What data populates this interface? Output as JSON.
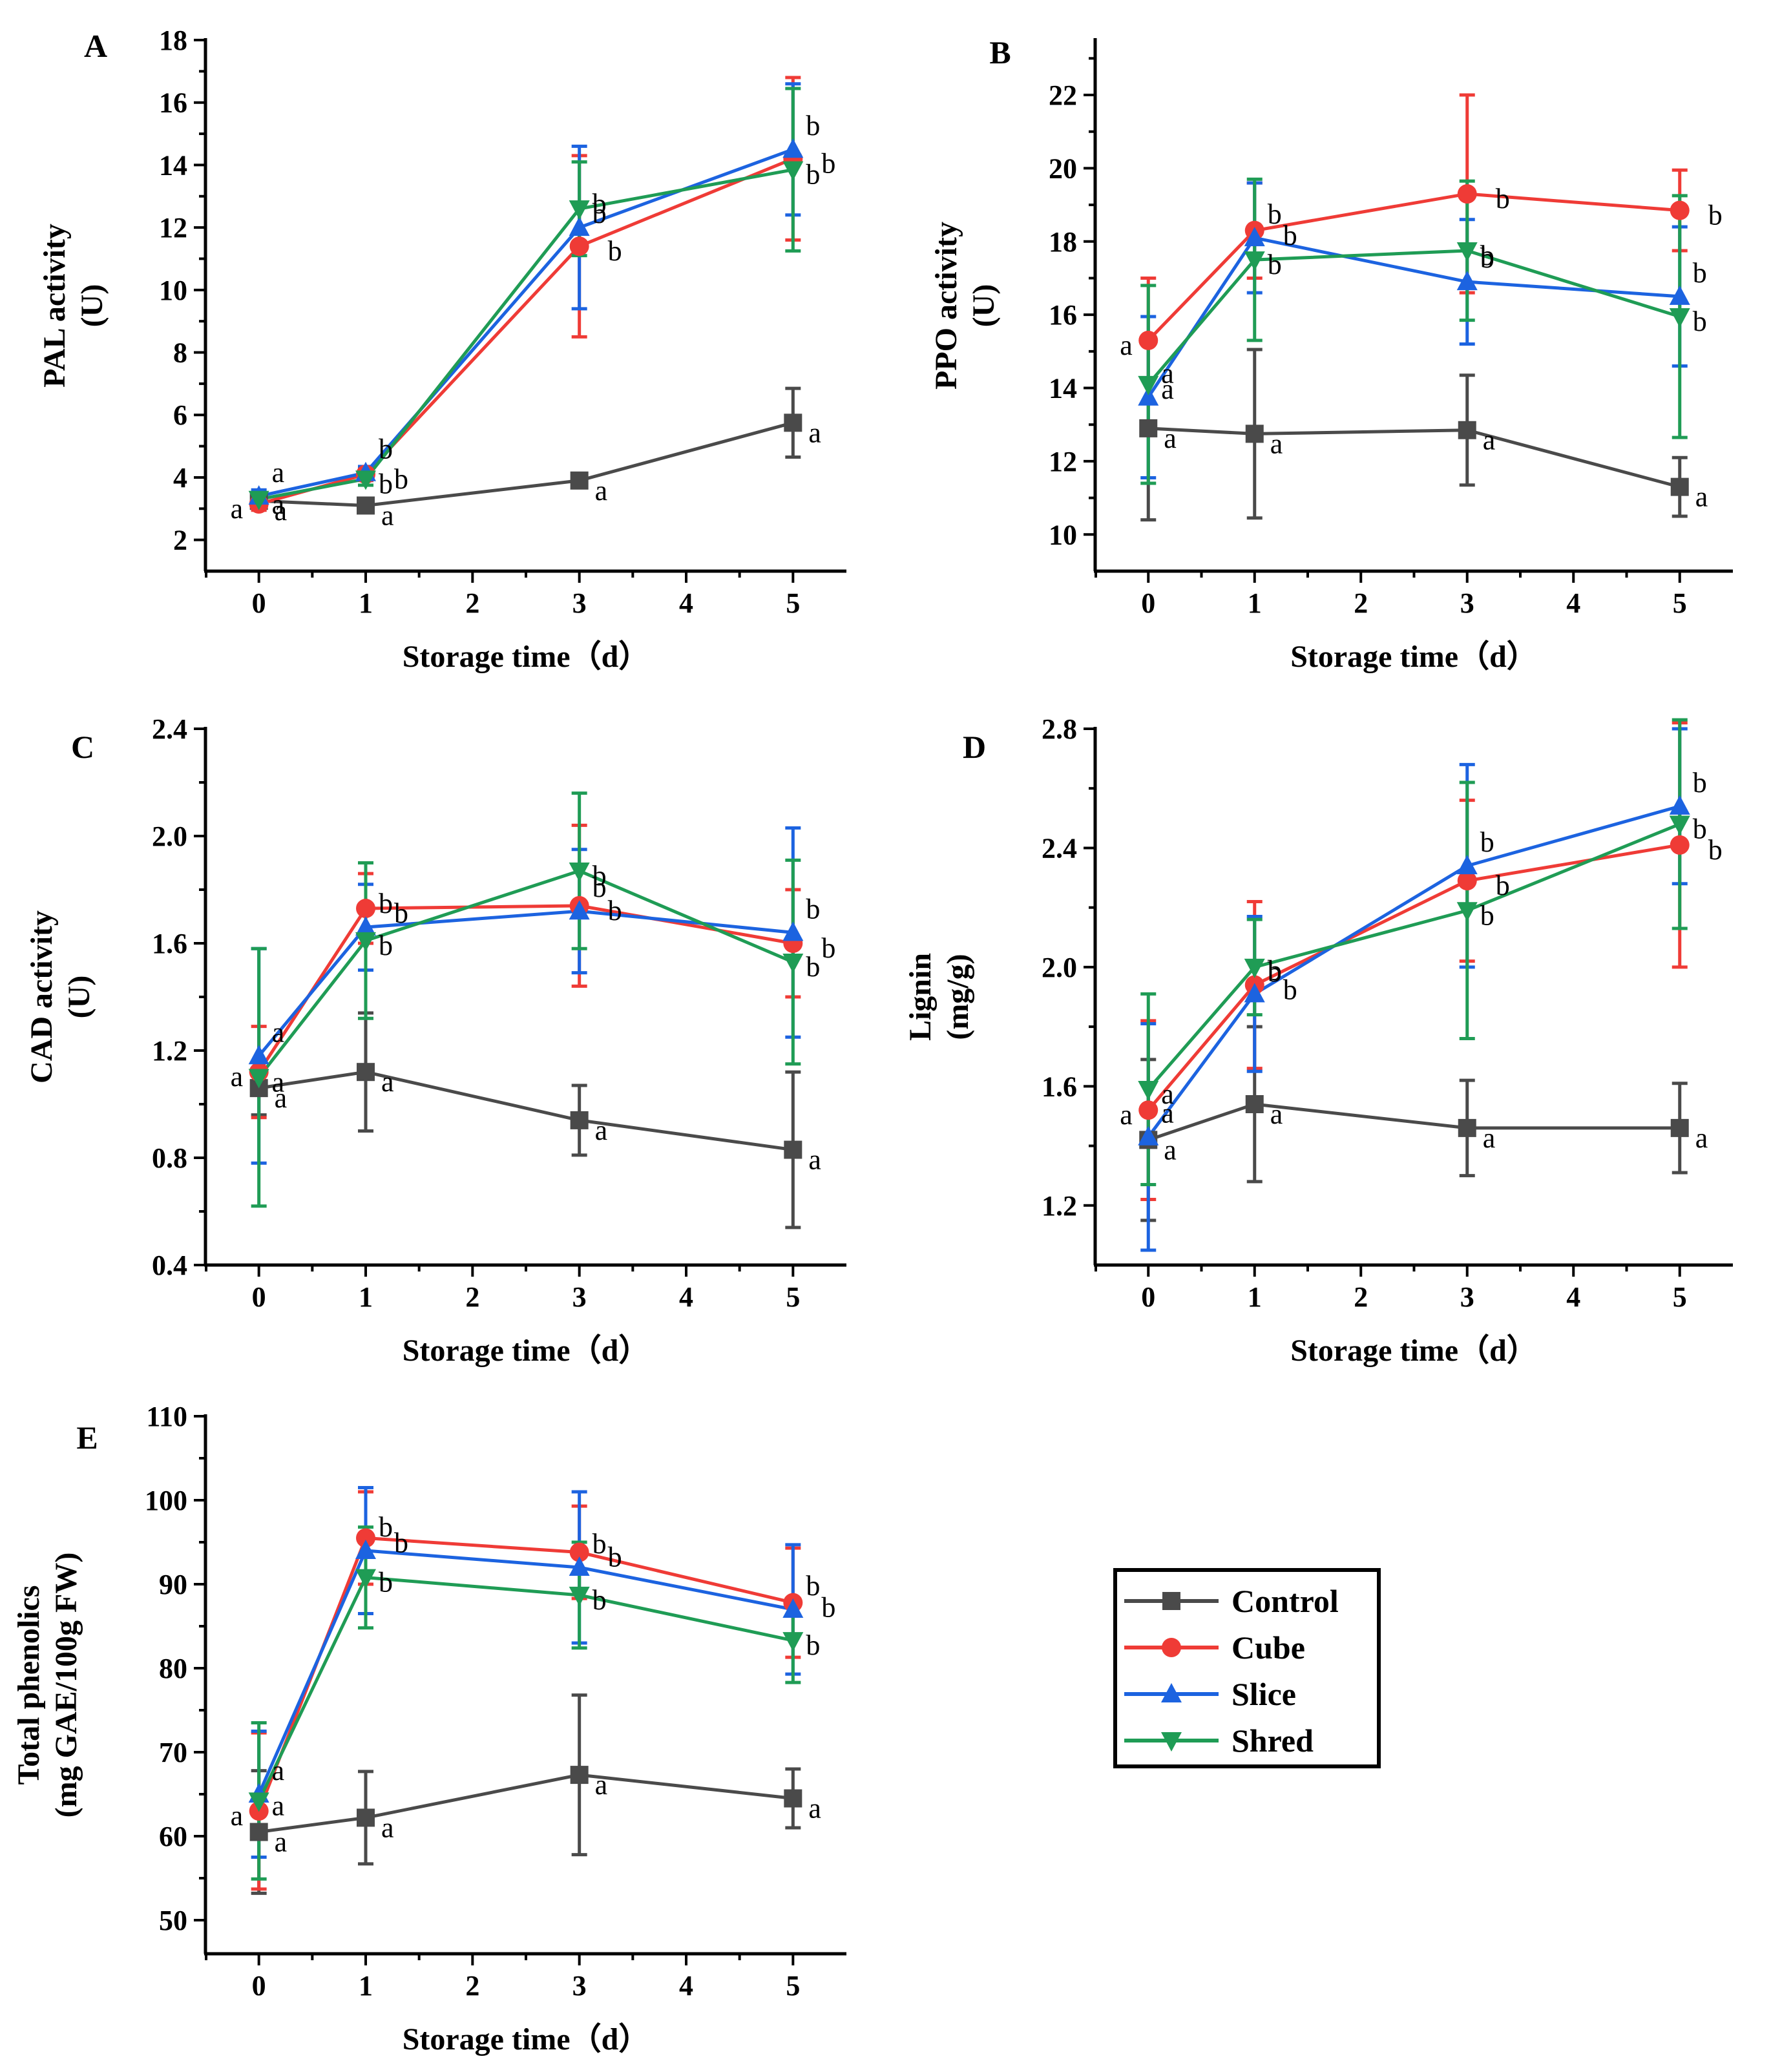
{
  "colors": {
    "Control": "#4a4a4a",
    "Cube": "#ef3b36",
    "Slice": "#1c63e0",
    "Shred": "#1f9c55",
    "axis": "#000000"
  },
  "legend": {
    "entries": [
      "Control",
      "Cube",
      "Slice",
      "Shred"
    ],
    "markers": [
      "square",
      "circle",
      "triangle-up",
      "triangle-down"
    ],
    "placement": "lower-right"
  },
  "chart_data": [
    {
      "type": "line",
      "panel": "A",
      "xlabel": "Storage time（d）",
      "ylabel": [
        "PAL activity",
        "(U)"
      ],
      "xlim": [
        -0.5,
        5.5
      ],
      "ylim": [
        1,
        18
      ],
      "xticks": [
        0,
        1,
        2,
        3,
        4,
        5
      ],
      "yticks": [
        2,
        4,
        6,
        8,
        10,
        12,
        14,
        16,
        18
      ],
      "tick_decimals": 0,
      "x": [
        0,
        1,
        3,
        5
      ],
      "series": [
        {
          "name": "Control",
          "values": [
            3.25,
            3.1,
            3.9,
            5.75
          ],
          "errors": [
            0.2,
            0.2,
            0.2,
            1.1
          ],
          "letters": [
            "a",
            "a",
            "a",
            "a"
          ]
        },
        {
          "name": "Cube",
          "values": [
            3.15,
            4.1,
            11.4,
            14.2
          ],
          "errors": [
            0.2,
            0.2,
            2.9,
            2.6
          ],
          "letters": [
            "a",
            "b",
            "b",
            "b"
          ]
        },
        {
          "name": "Slice",
          "values": [
            3.4,
            4.15,
            12.0,
            14.5
          ],
          "errors": [
            0.2,
            0.2,
            2.6,
            2.1
          ],
          "letters": [
            "a",
            "b",
            "b",
            "b"
          ]
        },
        {
          "name": "Shred",
          "values": [
            3.3,
            3.95,
            12.6,
            13.85
          ],
          "errors": [
            0.2,
            0.2,
            1.5,
            2.6
          ],
          "letters": [
            "a",
            "b",
            "b",
            "b"
          ]
        }
      ]
    },
    {
      "type": "line",
      "panel": "B",
      "xlabel": "Storage time（d）",
      "ylabel": [
        "PPO activity",
        "(U)"
      ],
      "xlim": [
        -0.5,
        5.5
      ],
      "ylim": [
        9,
        23.5
      ],
      "xticks": [
        0,
        1,
        2,
        3,
        4,
        5
      ],
      "yticks": [
        10,
        12,
        14,
        16,
        18,
        20,
        22
      ],
      "tick_decimals": 0,
      "x": [
        0,
        1,
        3,
        5
      ],
      "series": [
        {
          "name": "Control",
          "values": [
            12.9,
            12.75,
            12.85,
            11.3
          ],
          "errors": [
            2.5,
            2.3,
            1.5,
            0.8
          ],
          "letters": [
            "a",
            "a",
            "a",
            "a"
          ]
        },
        {
          "name": "Cube",
          "values": [
            15.3,
            18.3,
            19.3,
            18.85
          ],
          "errors": [
            1.7,
            1.3,
            2.7,
            1.1
          ],
          "letters": [
            "a",
            "b",
            "b",
            "b"
          ]
        },
        {
          "name": "Slice",
          "values": [
            13.75,
            18.1,
            16.9,
            16.5
          ],
          "errors": [
            2.2,
            1.5,
            1.7,
            1.9
          ],
          "letters": [
            "a",
            "b",
            "b",
            "b"
          ]
        },
        {
          "name": "Shred",
          "values": [
            14.1,
            17.5,
            17.75,
            15.95
          ],
          "errors": [
            2.7,
            2.2,
            1.9,
            3.3
          ],
          "letters": [
            "a",
            "b",
            "b",
            "b"
          ]
        }
      ]
    },
    {
      "type": "line",
      "panel": "C",
      "xlabel": "Storage time（d）",
      "ylabel": [
        "CAD activity",
        "(U)"
      ],
      "xlim": [
        -0.5,
        5.5
      ],
      "ylim": [
        0.4,
        2.4
      ],
      "xticks": [
        0,
        1,
        2,
        3,
        4,
        5
      ],
      "yticks": [
        0.4,
        0.8,
        1.2,
        1.6,
        2.0,
        2.4
      ],
      "tick_decimals": 1,
      "x": [
        0,
        1,
        3,
        5
      ],
      "series": [
        {
          "name": "Control",
          "values": [
            1.06,
            1.12,
            0.94,
            0.83
          ],
          "errors": [
            0.1,
            0.22,
            0.13,
            0.29
          ],
          "letters": [
            "a",
            "a",
            "a",
            "a"
          ]
        },
        {
          "name": "Cube",
          "values": [
            1.12,
            1.73,
            1.74,
            1.6
          ],
          "errors": [
            0.17,
            0.13,
            0.3,
            0.2
          ],
          "letters": [
            "a",
            "b",
            "b",
            "b"
          ]
        },
        {
          "name": "Slice",
          "values": [
            1.18,
            1.66,
            1.72,
            1.64
          ],
          "errors": [
            0.4,
            0.16,
            0.23,
            0.39
          ],
          "letters": [
            "a",
            "b",
            "b",
            "b"
          ]
        },
        {
          "name": "Shred",
          "values": [
            1.1,
            1.61,
            1.87,
            1.53
          ],
          "errors": [
            0.48,
            0.29,
            0.29,
            0.38
          ],
          "letters": [
            "a",
            "b",
            "b",
            "b"
          ]
        }
      ]
    },
    {
      "type": "line",
      "panel": "D",
      "xlabel": "Storage time（d）",
      "ylabel": [
        "Lignin",
        "(mg/g)"
      ],
      "xlim": [
        -0.5,
        5.5
      ],
      "ylim": [
        1.0,
        2.8
      ],
      "xticks": [
        0,
        1,
        2,
        3,
        4,
        5
      ],
      "yticks": [
        1.2,
        1.6,
        2.0,
        2.4,
        2.8
      ],
      "tick_decimals": 1,
      "x": [
        0,
        1,
        3,
        5
      ],
      "series": [
        {
          "name": "Control",
          "values": [
            1.42,
            1.54,
            1.46,
            1.46
          ],
          "errors": [
            0.27,
            0.26,
            0.16,
            0.15
          ],
          "letters": [
            "a",
            "a",
            "a",
            "a"
          ]
        },
        {
          "name": "Cube",
          "values": [
            1.52,
            1.94,
            2.29,
            2.41
          ],
          "errors": [
            0.3,
            0.28,
            0.27,
            0.41
          ],
          "letters": [
            "a",
            "b",
            "b",
            "b"
          ]
        },
        {
          "name": "Slice",
          "values": [
            1.43,
            1.91,
            2.34,
            2.54
          ],
          "errors": [
            0.38,
            0.26,
            0.34,
            0.26
          ],
          "letters": [
            "a",
            "b",
            "b",
            "b"
          ]
        },
        {
          "name": "Shred",
          "values": [
            1.59,
            2.0,
            2.19,
            2.48
          ],
          "errors": [
            0.32,
            0.16,
            0.43,
            0.35
          ],
          "letters": [
            "a",
            "b",
            "b",
            "b"
          ]
        }
      ]
    },
    {
      "type": "line",
      "panel": "E",
      "xlabel": "Storage time（d）",
      "ylabel": [
        "Total phenolics",
        "(mg GAE/100g FW)"
      ],
      "xlim": [
        -0.5,
        5.5
      ],
      "ylim": [
        46,
        110
      ],
      "xticks": [
        0,
        1,
        2,
        3,
        4,
        5
      ],
      "yticks": [
        50,
        60,
        70,
        80,
        90,
        100,
        110
      ],
      "tick_decimals": 0,
      "x": [
        0,
        1,
        3,
        5
      ],
      "series": [
        {
          "name": "Control",
          "values": [
            60.5,
            62.2,
            67.3,
            64.5
          ],
          "errors": [
            7.3,
            5.5,
            9.5,
            3.5
          ],
          "letters": [
            "a",
            "a",
            "a",
            "a"
          ]
        },
        {
          "name": "Cube",
          "values": [
            63.0,
            95.5,
            93.8,
            87.8
          ],
          "errors": [
            9.3,
            5.5,
            5.5,
            6.5
          ],
          "letters": [
            "a",
            "b",
            "b",
            "b"
          ]
        },
        {
          "name": "Slice",
          "values": [
            65.0,
            94.0,
            92.0,
            87.0
          ],
          "errors": [
            7.5,
            7.5,
            9.0,
            7.7
          ],
          "letters": [
            "a",
            "b",
            "b",
            "b"
          ]
        },
        {
          "name": "Shred",
          "values": [
            64.2,
            90.8,
            88.7,
            83.3
          ],
          "errors": [
            9.3,
            6.0,
            6.3,
            5.0
          ],
          "letters": [
            "a",
            "b",
            "b",
            "b"
          ]
        }
      ]
    }
  ]
}
